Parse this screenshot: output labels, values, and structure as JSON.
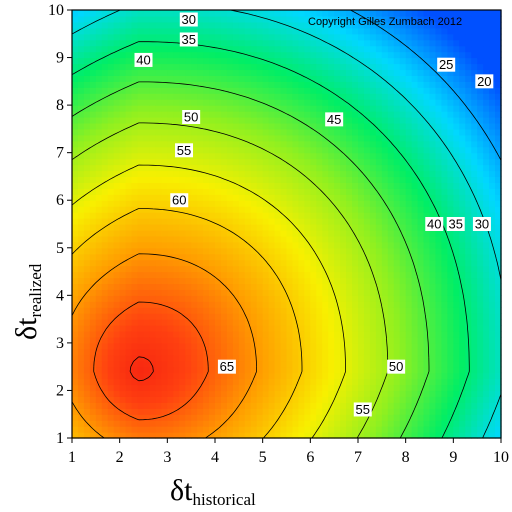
{
  "chart_data": {
    "type": "heatmap",
    "subtype": "filled-contour",
    "xlabel_symbol": "δt",
    "xlabel_subscript": "historical",
    "ylabel_symbol": "δt",
    "ylabel_subscript": "realized",
    "xlim": [
      1,
      10
    ],
    "ylim": [
      1,
      10
    ],
    "x_ticks": [
      "1",
      "2",
      "3",
      "4",
      "5",
      "6",
      "7",
      "8",
      "9",
      "10"
    ],
    "y_ticks": [
      "1",
      "2",
      "3",
      "4",
      "5",
      "6",
      "7",
      "8",
      "9",
      "10"
    ],
    "copyright": "Copyright Gilles Zumbach 2012",
    "colormap": [
      "#0050ff",
      "#00d8ff",
      "#00ee66",
      "#90f020",
      "#f8f000",
      "#ffa000",
      "#ff4010",
      "#f01010"
    ],
    "value_range": [
      15,
      70
    ],
    "contour_levels": [
      20,
      25,
      30,
      35,
      40,
      45,
      50,
      55,
      60,
      65
    ],
    "contour_labels": [
      {
        "text": "30",
        "x": 3.45,
        "y": 9.8
      },
      {
        "text": "35",
        "x": 3.45,
        "y": 9.38
      },
      {
        "text": "40",
        "x": 2.5,
        "y": 8.95
      },
      {
        "text": "50",
        "x": 3.5,
        "y": 7.75
      },
      {
        "text": "55",
        "x": 3.35,
        "y": 7.05
      },
      {
        "text": "60",
        "x": 3.25,
        "y": 6.0
      },
      {
        "text": "65",
        "x": 4.25,
        "y": 2.5
      },
      {
        "text": "45",
        "x": 6.5,
        "y": 7.7
      },
      {
        "text": "25",
        "x": 8.85,
        "y": 8.85
      },
      {
        "text": "20",
        "x": 9.65,
        "y": 8.5
      },
      {
        "text": "40",
        "x": 8.6,
        "y": 5.5
      },
      {
        "text": "35",
        "x": 9.05,
        "y": 5.5
      },
      {
        "text": "30",
        "x": 9.6,
        "y": 5.5
      },
      {
        "text": "50",
        "x": 7.8,
        "y": 2.5
      },
      {
        "text": "55",
        "x": 7.1,
        "y": 1.6
      }
    ]
  }
}
